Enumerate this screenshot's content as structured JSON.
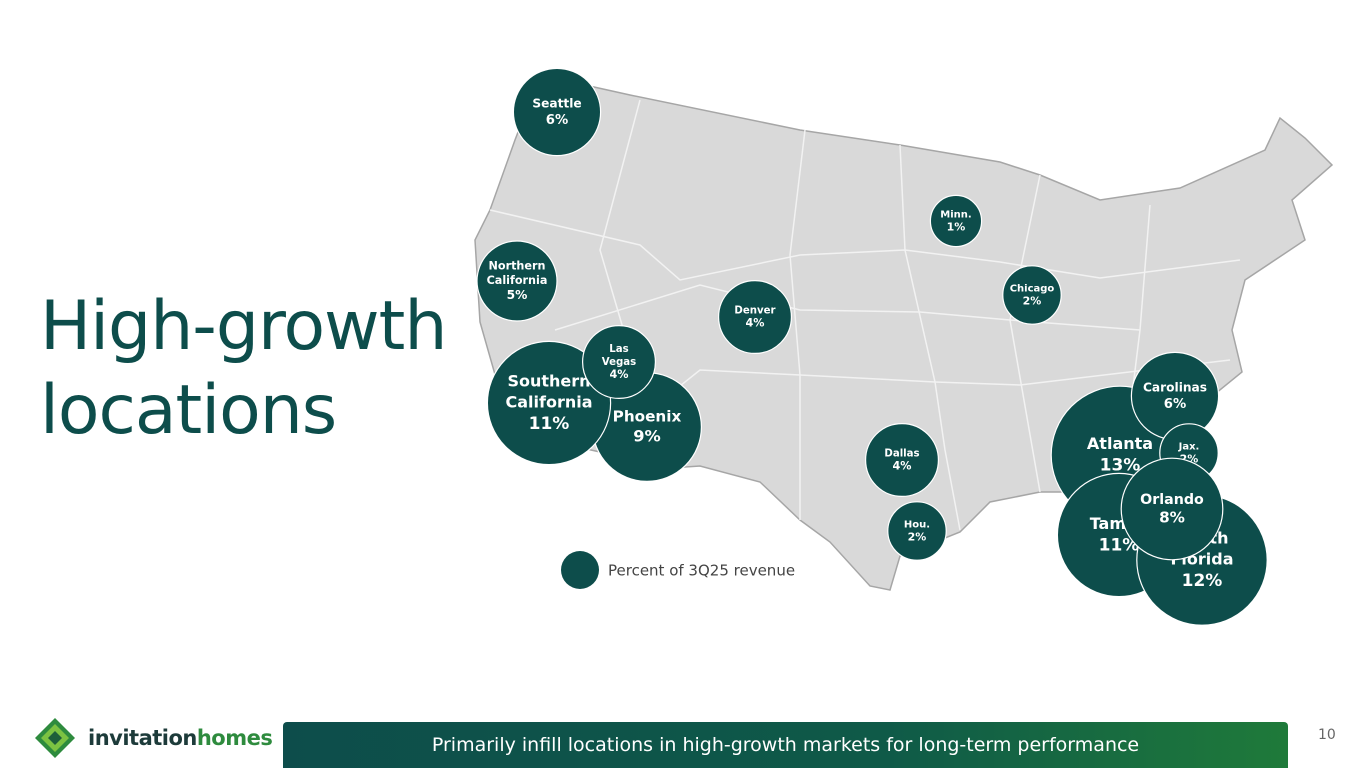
{
  "header": {
    "title_lines": [
      "High-growth",
      "locations"
    ]
  },
  "markets": [
    {
      "name": [
        "Seattle"
      ],
      "value": 6,
      "label": "6%"
    },
    {
      "name": [
        "Northern",
        "California"
      ],
      "value": 5,
      "label": "5%"
    },
    {
      "name": [
        "Phoenix"
      ],
      "value": 9,
      "label": "9%"
    },
    {
      "name": [
        "Southern",
        "California"
      ],
      "value": 11,
      "label": "11%"
    },
    {
      "name": [
        "Las",
        "Vegas"
      ],
      "value": 4,
      "label": "4%"
    },
    {
      "name": [
        "Denver"
      ],
      "value": 4,
      "label": "4%"
    },
    {
      "name": [
        "Minn."
      ],
      "value": 1,
      "label": "1%"
    },
    {
      "name": [
        "Chicago"
      ],
      "value": 2,
      "label": "2%"
    },
    {
      "name": [
        "Dallas"
      ],
      "value": 4,
      "label": "4%"
    },
    {
      "name": [
        "Hou."
      ],
      "value": 2,
      "label": "2%"
    },
    {
      "name": [
        "Atlanta"
      ],
      "value": 13,
      "label": "13%"
    },
    {
      "name": [
        "Carolinas"
      ],
      "value": 6,
      "label": "6%"
    },
    {
      "name": [
        "Jax."
      ],
      "value": 2,
      "label": "2%"
    },
    {
      "name": [
        "Tampa"
      ],
      "value": 11,
      "label": "11%"
    },
    {
      "name": [
        "South",
        "Florida"
      ],
      "value": 12,
      "label": "12%"
    },
    {
      "name": [
        "Orlando"
      ],
      "value": 8,
      "label": "8%"
    }
  ],
  "legend": {
    "text": "Percent of 3Q25 revenue"
  },
  "footer": {
    "logo_first": "invitation",
    "logo_second": "homes",
    "banner": "Primarily infill locations in high-growth markets for long-term performance",
    "page_number": "10"
  }
}
